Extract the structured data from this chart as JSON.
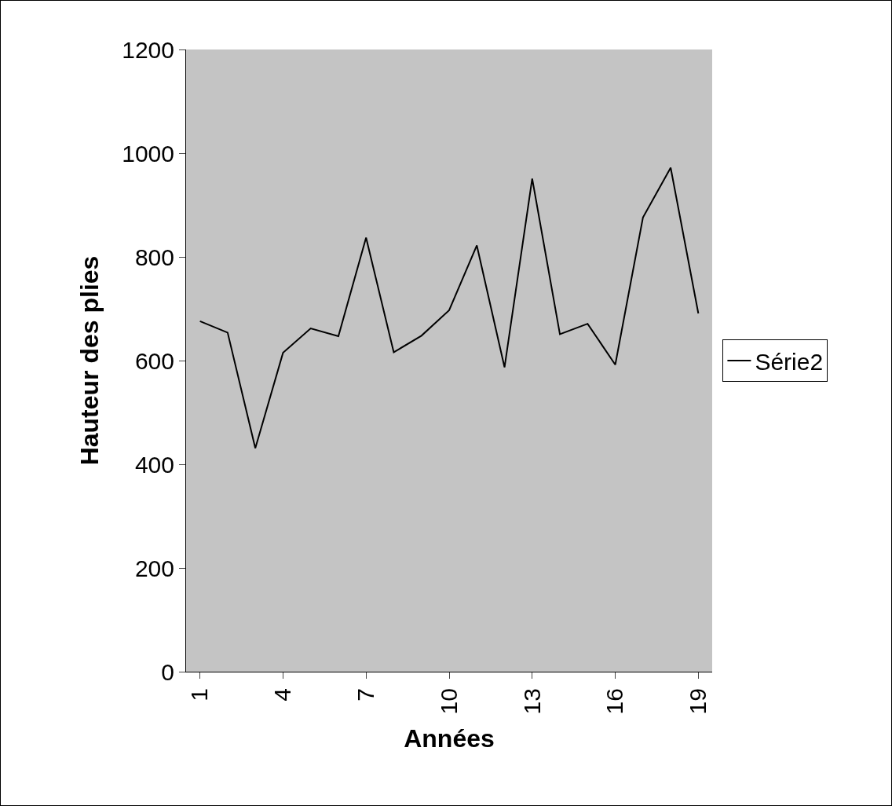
{
  "chart_data": {
    "type": "line",
    "xlabel": "Années",
    "ylabel": "Hauteur des plies",
    "categories": [
      "1",
      null,
      null,
      "4",
      null,
      null,
      "7",
      null,
      null,
      "10",
      null,
      null,
      "13",
      null,
      null,
      "16",
      null,
      null,
      "19"
    ],
    "series": [
      {
        "name": "Série2",
        "color": "#000000",
        "values": [
          676,
          654,
          431,
          615,
          662,
          647,
          837,
          616,
          648,
          697,
          822,
          587,
          951,
          651,
          671,
          592,
          876,
          972,
          691
        ]
      }
    ],
    "ylim": [
      0,
      1200
    ],
    "yticks": [
      0,
      200,
      400,
      600,
      800,
      1000,
      1200
    ],
    "grid": false,
    "legend": "right",
    "marker": "none",
    "line_style": "solid"
  }
}
